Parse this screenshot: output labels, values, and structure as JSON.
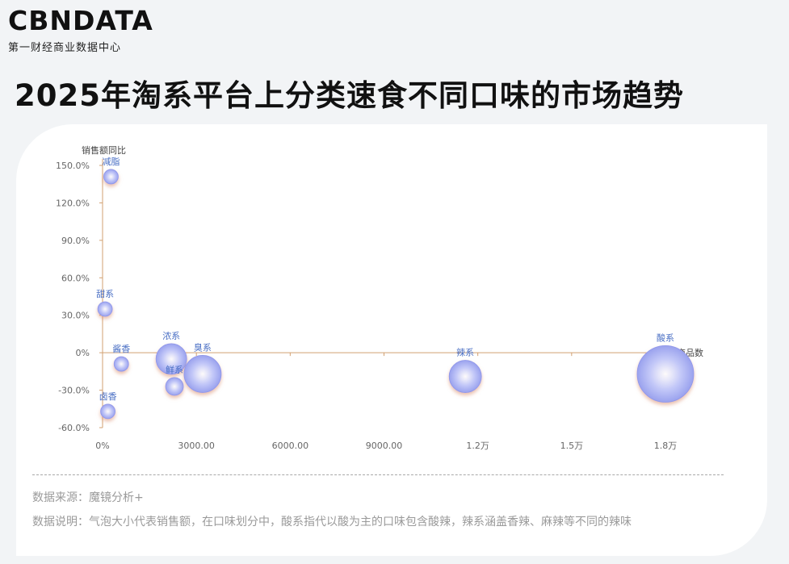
{
  "brand": {
    "logo_text": "CBNDATA",
    "tagline": "第一财经商业数据中心"
  },
  "page_title": "2025年淘系平台上分类速食不同口味的市场趋势",
  "colors": {
    "bubble": "#a9b0f2",
    "bubble_edge": "#8f97ea",
    "axis": "#d2a070",
    "label": "#4a6fc4"
  },
  "chart_data": {
    "type": "scatter",
    "subtype": "bubble",
    "title": "",
    "xlabel": "商品数",
    "ylabel": "销售额同比",
    "xlim": [
      0,
      18000
    ],
    "ylim": [
      -60,
      150
    ],
    "x_ticks": [
      {
        "value": 0,
        "label": "0%"
      },
      {
        "value": 3000,
        "label": "3000.00"
      },
      {
        "value": 6000,
        "label": "6000.00"
      },
      {
        "value": 9000,
        "label": "9000.00"
      },
      {
        "value": 12000,
        "label": "1.2万"
      },
      {
        "value": 15000,
        "label": "1.5万"
      },
      {
        "value": 18000,
        "label": "1.8万"
      }
    ],
    "y_ticks": [
      {
        "value": 150,
        "label": "150.0%"
      },
      {
        "value": 120,
        "label": "120.0%"
      },
      {
        "value": 90,
        "label": "90.0%"
      },
      {
        "value": 60,
        "label": "60.0%"
      },
      {
        "value": 30,
        "label": "30.0%"
      },
      {
        "value": 0,
        "label": "0%"
      },
      {
        "value": -30,
        "label": "-30.0%"
      },
      {
        "value": -60,
        "label": "-60.0%"
      }
    ],
    "points": [
      {
        "name": "减脂",
        "x": 270,
        "y": 141,
        "size": 9
      },
      {
        "name": "甜系",
        "x": 80,
        "y": 35,
        "size": 9
      },
      {
        "name": "酱香",
        "x": 600,
        "y": -9,
        "size": 9
      },
      {
        "name": "卤香",
        "x": 170,
        "y": -47,
        "size": 9
      },
      {
        "name": "浓系",
        "x": 2200,
        "y": -5,
        "size": 19
      },
      {
        "name": "鲜系",
        "x": 2300,
        "y": -27,
        "size": 11
      },
      {
        "name": "臭系",
        "x": 3200,
        "y": -17,
        "size": 23
      },
      {
        "name": "辣系",
        "x": 11600,
        "y": -19,
        "size": 20
      },
      {
        "name": "酸系",
        "x": 18000,
        "y": -17,
        "size": 35
      }
    ]
  },
  "footer": {
    "source": "数据来源：魔镜分析+",
    "note": "数据说明：气泡大小代表销售额，在口味划分中，酸系指代以酸为主的口味包含酸辣，辣系涵盖香辣、麻辣等不同的辣味"
  }
}
